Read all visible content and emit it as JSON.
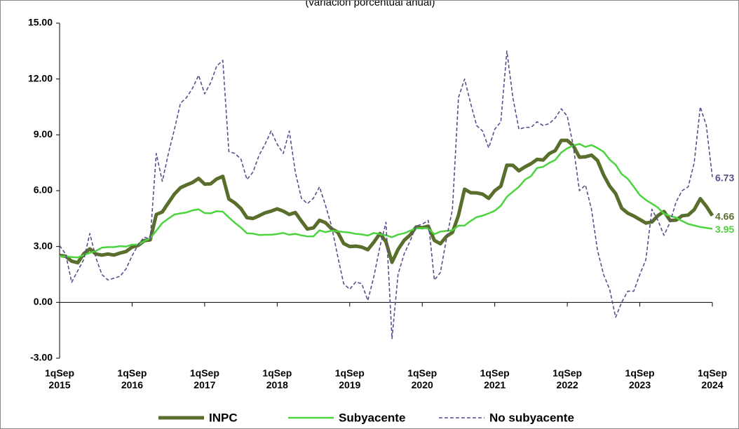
{
  "chart_data": {
    "type": "line",
    "subtitle": "(variación porcentual anual)",
    "categories": [
      "1qSep 2015",
      null,
      null,
      null,
      null,
      null,
      null,
      null,
      null,
      null,
      null,
      null,
      "1qSep 2016",
      null,
      null,
      null,
      null,
      null,
      null,
      null,
      null,
      null,
      null,
      null,
      "1qSep 2017",
      null,
      null,
      null,
      null,
      null,
      null,
      null,
      null,
      null,
      null,
      null,
      "1qSep 2018",
      null,
      null,
      null,
      null,
      null,
      null,
      null,
      null,
      null,
      null,
      null,
      "1qSep 2019",
      null,
      null,
      null,
      null,
      null,
      null,
      null,
      null,
      null,
      null,
      null,
      "1qSep 2020",
      null,
      null,
      null,
      null,
      null,
      null,
      null,
      null,
      null,
      null,
      null,
      "1qSep 2021",
      null,
      null,
      null,
      null,
      null,
      null,
      null,
      null,
      null,
      null,
      null,
      "1qSep 2022",
      null,
      null,
      null,
      null,
      null,
      null,
      null,
      null,
      null,
      null,
      null,
      "1qSep 2023",
      null,
      null,
      null,
      null,
      null,
      null,
      null,
      null,
      null,
      null,
      null,
      "1qSep 2024"
    ],
    "series": [
      {
        "name": "INPC",
        "color": "#5a6e2c",
        "values": [
          2.52,
          2.48,
          2.21,
          2.13,
          2.61,
          2.87,
          2.6,
          2.54,
          2.6,
          2.54,
          2.65,
          2.73,
          2.97,
          3.06,
          3.31,
          3.36,
          4.72,
          4.86,
          5.35,
          5.82,
          6.16,
          6.31,
          6.44,
          6.66,
          6.35,
          6.37,
          6.63,
          6.77,
          5.55,
          5.34,
          5.04,
          4.55,
          4.51,
          4.65,
          4.81,
          4.9,
          5.02,
          4.9,
          4.72,
          4.83,
          4.37,
          3.94,
          4.0,
          4.41,
          4.28,
          3.95,
          3.78,
          3.16,
          3.0,
          3.02,
          2.97,
          2.83,
          3.24,
          3.7,
          3.25,
          2.15,
          2.84,
          3.33,
          3.62,
          4.05,
          4.01,
          4.09,
          3.33,
          3.15,
          3.54,
          3.76,
          4.67,
          6.08,
          5.89,
          5.88,
          5.81,
          5.59,
          6.0,
          6.24,
          7.37,
          7.36,
          7.07,
          7.28,
          7.45,
          7.68,
          7.65,
          7.99,
          8.15,
          8.7,
          8.7,
          8.41,
          7.8,
          7.82,
          7.91,
          7.62,
          6.85,
          6.25,
          5.84,
          5.06,
          4.79,
          4.64,
          4.45,
          4.26,
          4.32,
          4.66,
          4.88,
          4.4,
          4.42,
          4.65,
          4.69,
          4.98,
          5.57,
          5.16,
          4.66
        ]
      },
      {
        "name": "Subyacente",
        "color": "#4cd43f",
        "values": [
          2.47,
          2.47,
          2.43,
          2.41,
          2.54,
          2.66,
          2.76,
          2.94,
          2.97,
          2.97,
          3.02,
          3.0,
          3.1,
          3.1,
          3.29,
          3.44,
          3.85,
          4.26,
          4.5,
          4.72,
          4.78,
          4.83,
          4.94,
          5.0,
          4.8,
          4.78,
          4.9,
          4.87,
          4.56,
          4.27,
          4.02,
          3.71,
          3.69,
          3.62,
          3.63,
          3.63,
          3.67,
          3.73,
          3.63,
          3.68,
          3.6,
          3.54,
          3.55,
          3.87,
          3.77,
          3.85,
          3.82,
          3.78,
          3.75,
          3.68,
          3.65,
          3.59,
          3.73,
          3.66,
          3.6,
          3.5,
          3.64,
          3.71,
          3.85,
          3.97,
          3.99,
          3.98,
          3.66,
          3.8,
          3.84,
          3.87,
          4.12,
          4.13,
          4.37,
          4.58,
          4.66,
          4.78,
          4.92,
          5.19,
          5.67,
          5.94,
          6.21,
          6.59,
          6.78,
          7.22,
          7.28,
          7.49,
          7.65,
          8.05,
          8.28,
          8.42,
          8.51,
          8.35,
          8.45,
          8.29,
          8.09,
          7.67,
          7.39,
          6.89,
          6.64,
          6.21,
          5.76,
          5.5,
          5.3,
          5.09,
          4.76,
          4.64,
          4.55,
          4.37,
          4.21,
          4.13,
          4.05,
          4.0,
          3.95
        ]
      },
      {
        "name": "No subyacente",
        "color": "#5c4d8a",
        "dashed": true,
        "values": [
          3.05,
          2.6,
          1.08,
          1.7,
          2.3,
          3.7,
          2.4,
          1.5,
          1.2,
          1.3,
          1.4,
          1.8,
          2.5,
          3.1,
          3.5,
          3.4,
          8.0,
          6.5,
          8.0,
          9.3,
          10.7,
          11.0,
          11.5,
          12.2,
          11.2,
          11.8,
          12.7,
          13.0,
          8.1,
          8.0,
          7.7,
          6.6,
          7.0,
          7.9,
          8.5,
          9.2,
          8.5,
          8.0,
          9.2,
          7.0,
          5.6,
          5.3,
          5.6,
          6.2,
          5.2,
          4.1,
          2.5,
          1.0,
          0.7,
          1.1,
          1.0,
          0.1,
          1.4,
          3.0,
          4.3,
          -1.95,
          1.5,
          2.6,
          3.3,
          4.1,
          4.2,
          4.4,
          1.2,
          1.6,
          3.4,
          5.0,
          11.0,
          12.0,
          10.7,
          9.5,
          9.2,
          8.3,
          9.3,
          9.7,
          13.5,
          11.0,
          9.3,
          9.4,
          9.4,
          9.7,
          9.5,
          9.6,
          9.9,
          10.4,
          10.0,
          8.4,
          6.0,
          6.3,
          5.0,
          2.8,
          1.5,
          0.7,
          -0.8,
          0.0,
          0.6,
          0.6,
          1.5,
          2.3,
          5.0,
          4.4,
          3.6,
          4.3,
          5.4,
          6.0,
          6.2,
          7.5,
          10.5,
          9.5,
          6.73
        ]
      }
    ],
    "ylim": [
      -3,
      15
    ],
    "yticks": [
      {
        "value": -3,
        "label": "-3.00"
      },
      {
        "value": 0,
        "label": "0.00"
      },
      {
        "value": 3,
        "label": "3.00"
      },
      {
        "value": 6,
        "label": "6.00"
      },
      {
        "value": 9,
        "label": "9.00"
      },
      {
        "value": 12,
        "label": "12.00"
      },
      {
        "value": 15,
        "label": "15.00"
      }
    ],
    "legend": "bottom"
  }
}
